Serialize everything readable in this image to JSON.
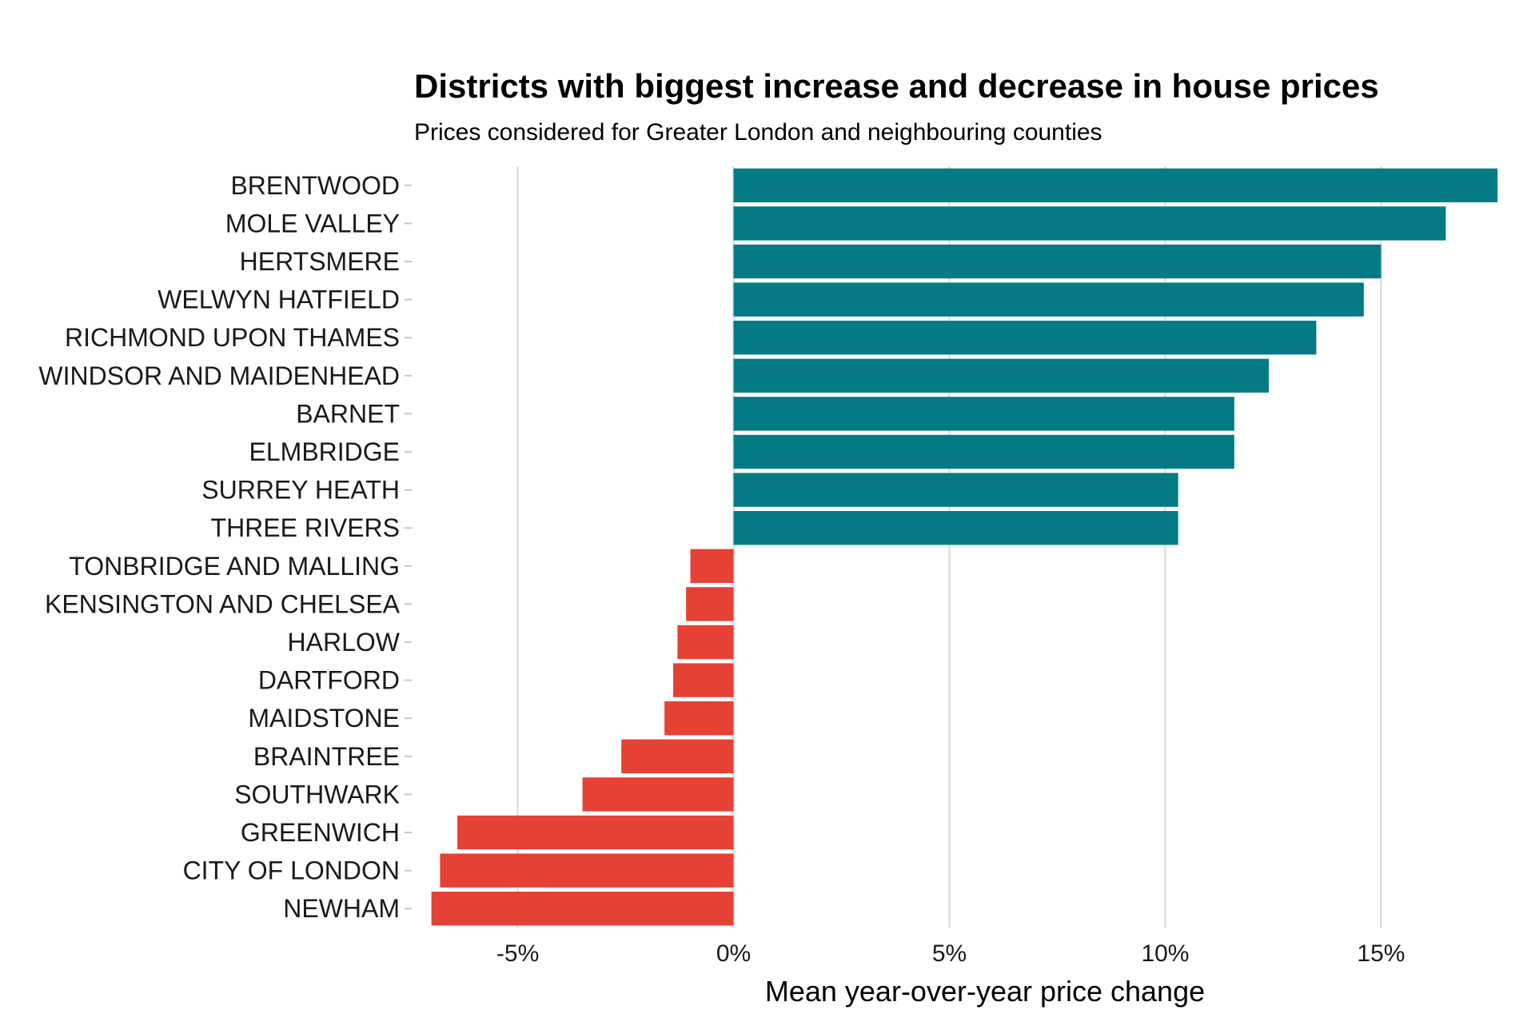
{
  "chart_data": {
    "type": "bar",
    "orientation": "horizontal",
    "title": "Districts with biggest increase and decrease in house prices",
    "subtitle": "Prices considered for Greater London and neighbouring counties",
    "xlabel": "Mean year-over-year price change",
    "ylabel": "",
    "xlim": [
      -7.4,
      17.9
    ],
    "x_ticks": [
      -5,
      0,
      5,
      10,
      15
    ],
    "x_tick_labels": [
      "-5%",
      "0%",
      "5%",
      "10%",
      "15%"
    ],
    "grid": "vertical-major",
    "legend": "none",
    "colors": {
      "positive": "#047b84",
      "negative": "#e64135"
    },
    "categories": [
      "BRENTWOOD",
      "MOLE VALLEY",
      "HERTSMERE",
      "WELWYN HATFIELD",
      "RICHMOND UPON THAMES",
      "WINDSOR AND MAIDENHEAD",
      "BARNET",
      "ELMBRIDGE",
      "SURREY HEATH",
      "THREE RIVERS",
      "TONBRIDGE AND MALLING",
      "KENSINGTON AND CHELSEA",
      "HARLOW",
      "DARTFORD",
      "MAIDSTONE",
      "BRAINTREE",
      "SOUTHWARK",
      "GREENWICH",
      "CITY OF LONDON",
      "NEWHAM"
    ],
    "values": [
      17.7,
      16.5,
      15.0,
      14.6,
      13.5,
      12.4,
      11.6,
      11.6,
      10.3,
      10.3,
      -1.0,
      -1.1,
      -1.3,
      -1.4,
      -1.6,
      -2.6,
      -3.5,
      -6.4,
      -6.8,
      -7.0
    ]
  }
}
